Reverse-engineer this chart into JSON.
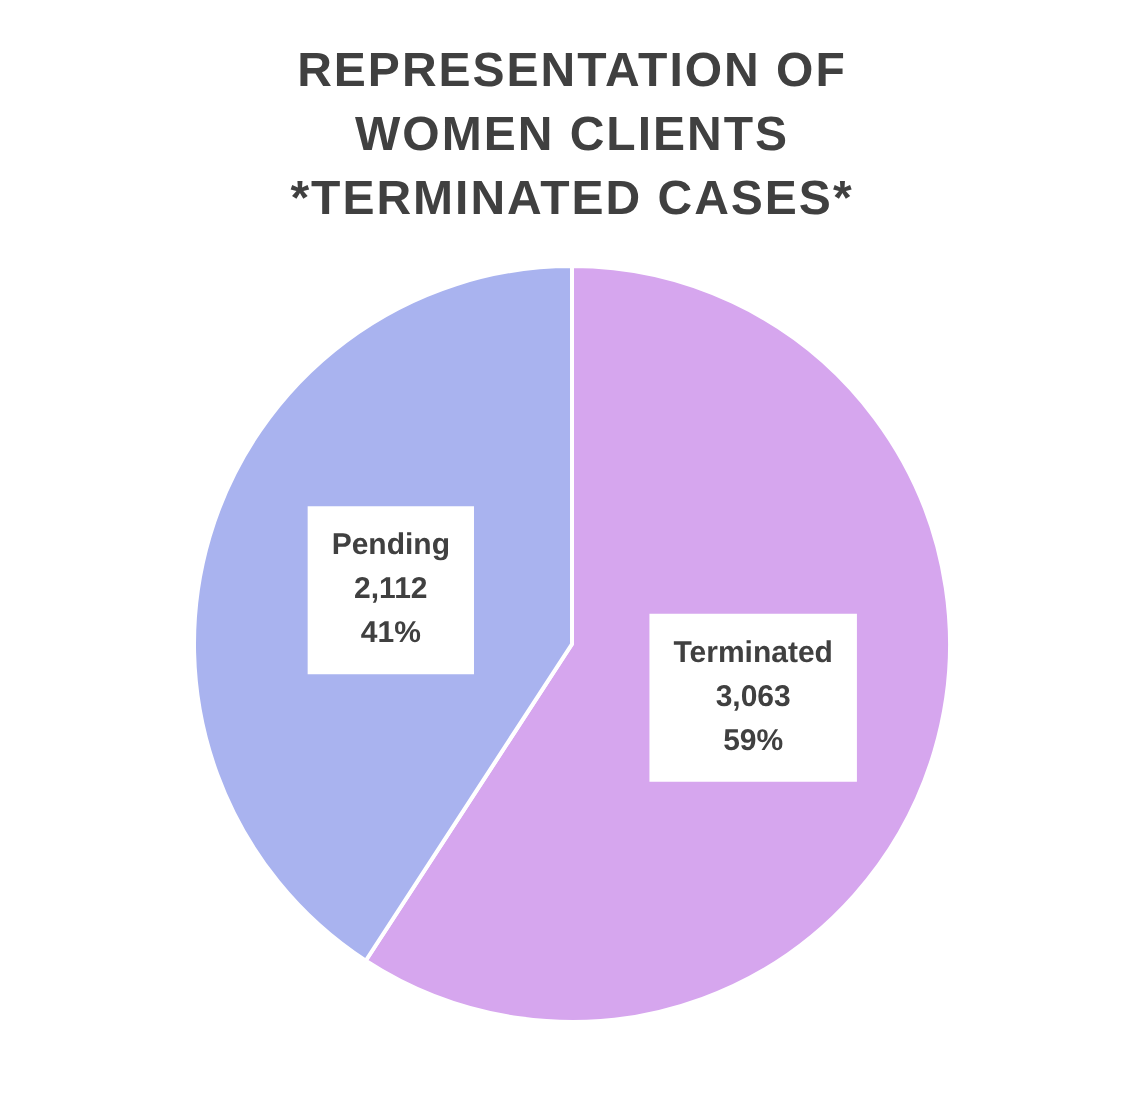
{
  "chart_data": {
    "type": "pie",
    "title": "REPRESENTATION OF WOMEN CLIENTS *TERMINATED CASES*",
    "categories": [
      "Terminated",
      "Pending"
    ],
    "values": [
      3063,
      2112
    ],
    "colors": [
      "#d6a6ee",
      "#a9b3ef"
    ],
    "value_labels": [
      "3,063\n59%",
      "2,112\n41%"
    ],
    "legend": false
  }
}
